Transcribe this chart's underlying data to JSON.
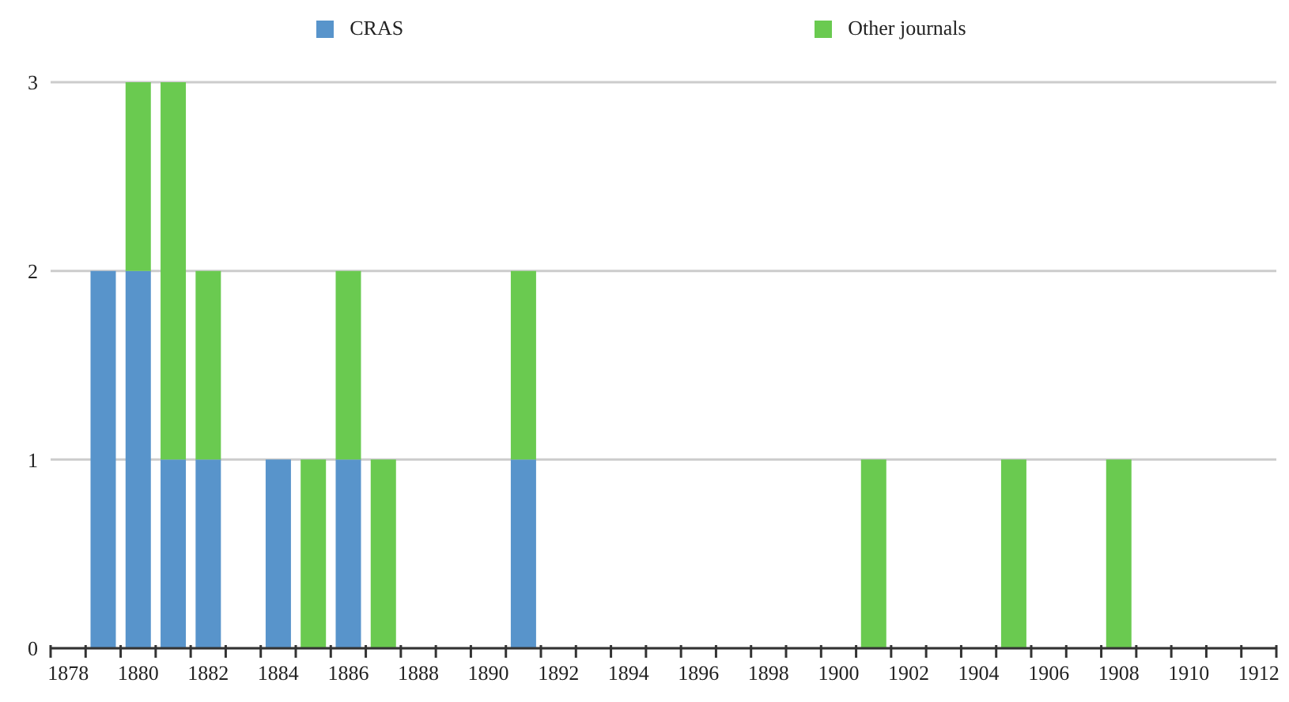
{
  "chart_data": {
    "type": "bar",
    "stacked": true,
    "categories": [
      "1878",
      null,
      "1880",
      null,
      "1882",
      null,
      "1884",
      null,
      "1886",
      null,
      "1888",
      null,
      "1890",
      null,
      "1892",
      null,
      "1894",
      null,
      "1896",
      null,
      "1898",
      null,
      "1900",
      null,
      "1902",
      null,
      "1904",
      null,
      "1906",
      null,
      "1908",
      null,
      "1910",
      null,
      "1912"
    ],
    "series": [
      {
        "name": "CRAS",
        "color": "#5894cb",
        "values": [
          0,
          2,
          2,
          1,
          1,
          0,
          1,
          0,
          1,
          0,
          0,
          0,
          0,
          1,
          0,
          0,
          0,
          0,
          0,
          0,
          0,
          0,
          0,
          0,
          0,
          0,
          0,
          0,
          0,
          0,
          0,
          0,
          0,
          0,
          0
        ]
      },
      {
        "name": "Other journals",
        "color": "#6aca50",
        "values": [
          0,
          0,
          1,
          2,
          1,
          0,
          0,
          1,
          1,
          1,
          0,
          0,
          0,
          1,
          0,
          0,
          0,
          0,
          0,
          0,
          0,
          0,
          0,
          1,
          0,
          0,
          0,
          1,
          0,
          0,
          1,
          0,
          0,
          0,
          0
        ]
      }
    ],
    "ylim": [
      0,
      3
    ],
    "yticks": [
      0,
      1,
      2,
      3
    ],
    "grid": "y",
    "legend": "top"
  }
}
